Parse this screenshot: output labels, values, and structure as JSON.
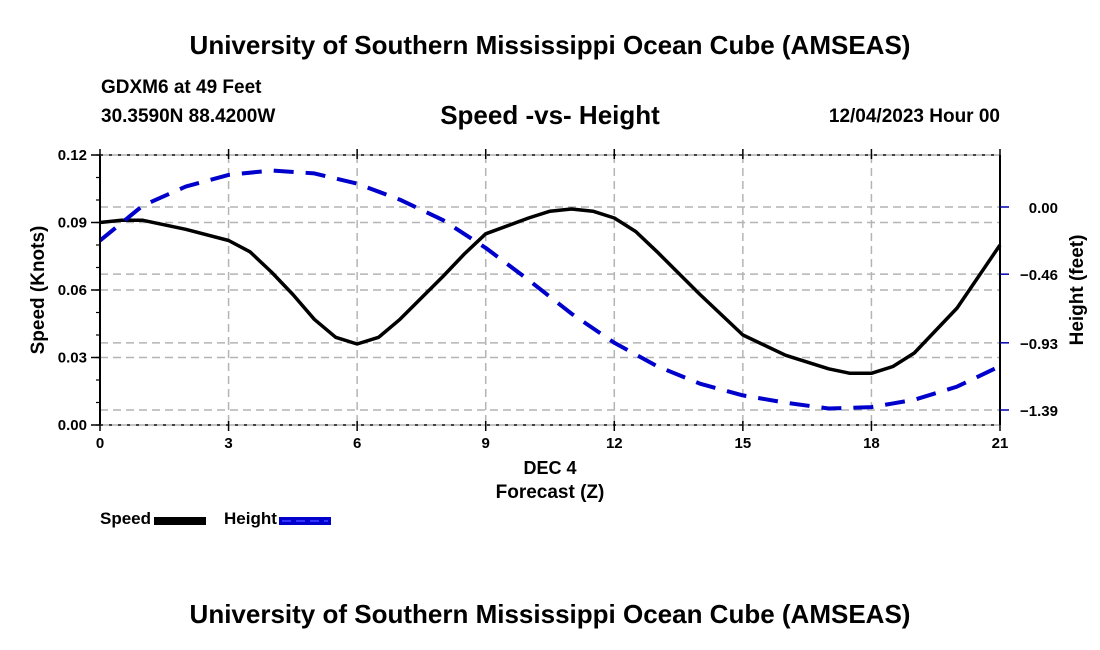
{
  "header": {
    "title": "University of Southern Mississippi Ocean Cube (AMSEAS)",
    "station": "GDXM6 at 49 Feet",
    "coords": "30.3590N  88.4200W",
    "subtitle": "Speed -vs- Height",
    "datetime": "12/04/2023 Hour 00"
  },
  "footer": {
    "title": "University of Southern Mississippi Ocean Cube (AMSEAS)"
  },
  "colors": {
    "speed": "#000000",
    "height": "#0000cc",
    "grid": "#b4b4b4",
    "right_ticks": "#0000aa"
  },
  "chart_data": {
    "type": "line",
    "title": "Speed -vs- Height",
    "xlabel": "Forecast (Z)",
    "xlabel_date": "DEC 4",
    "ylabel": "Speed (Knots)",
    "y2label": "Height (feet)",
    "xlim": [
      0,
      21
    ],
    "ylim": [
      0,
      0.12
    ],
    "y2lim": [
      -1.5,
      0.355
    ],
    "x_ticks": [
      "0",
      "3",
      "6",
      "9",
      "12",
      "15",
      "18",
      "21"
    ],
    "x_tick_values": [
      0,
      3,
      6,
      9,
      12,
      15,
      18,
      21
    ],
    "y_ticks": [
      "0.00",
      "0.03",
      "0.06",
      "0.09",
      "0.12"
    ],
    "y_tick_values": [
      0,
      0.03,
      0.06,
      0.09,
      0.12
    ],
    "y2_ticks": [
      "0.00",
      "−0.46",
      "−0.93",
      "−1.39"
    ],
    "y2_tick_values": [
      0,
      -0.46,
      -0.93,
      -1.39
    ],
    "grid": true,
    "legend_position": "bottom-left",
    "series": [
      {
        "name": "Speed",
        "axis": "left",
        "style": "solid",
        "x": [
          0,
          0.5,
          1,
          2,
          3,
          3.5,
          4,
          4.5,
          5,
          5.5,
          6,
          6.5,
          7,
          8,
          8.5,
          9,
          10,
          10.5,
          11,
          11.5,
          12,
          12.5,
          13,
          14,
          15,
          16,
          17,
          17.5,
          18,
          18.5,
          19,
          20,
          21
        ],
        "values": [
          0.09,
          0.091,
          0.091,
          0.087,
          0.082,
          0.077,
          0.068,
          0.058,
          0.047,
          0.039,
          0.036,
          0.039,
          0.047,
          0.066,
          0.076,
          0.085,
          0.092,
          0.095,
          0.096,
          0.095,
          0.092,
          0.086,
          0.077,
          0.058,
          0.04,
          0.031,
          0.025,
          0.023,
          0.023,
          0.026,
          0.032,
          0.052,
          0.08
        ]
      },
      {
        "name": "Height",
        "axis": "right",
        "style": "dashed",
        "x": [
          0,
          1,
          2,
          3,
          4,
          5,
          6,
          7,
          8,
          9,
          10,
          11,
          12,
          13,
          14,
          15,
          16,
          17,
          18,
          19,
          20,
          21
        ],
        "values": [
          -0.23,
          0.01,
          0.14,
          0.22,
          0.25,
          0.23,
          0.16,
          0.05,
          -0.09,
          -0.28,
          -0.5,
          -0.73,
          -0.93,
          -1.09,
          -1.21,
          -1.29,
          -1.34,
          -1.38,
          -1.37,
          -1.32,
          -1.23,
          -1.09
        ]
      }
    ]
  }
}
